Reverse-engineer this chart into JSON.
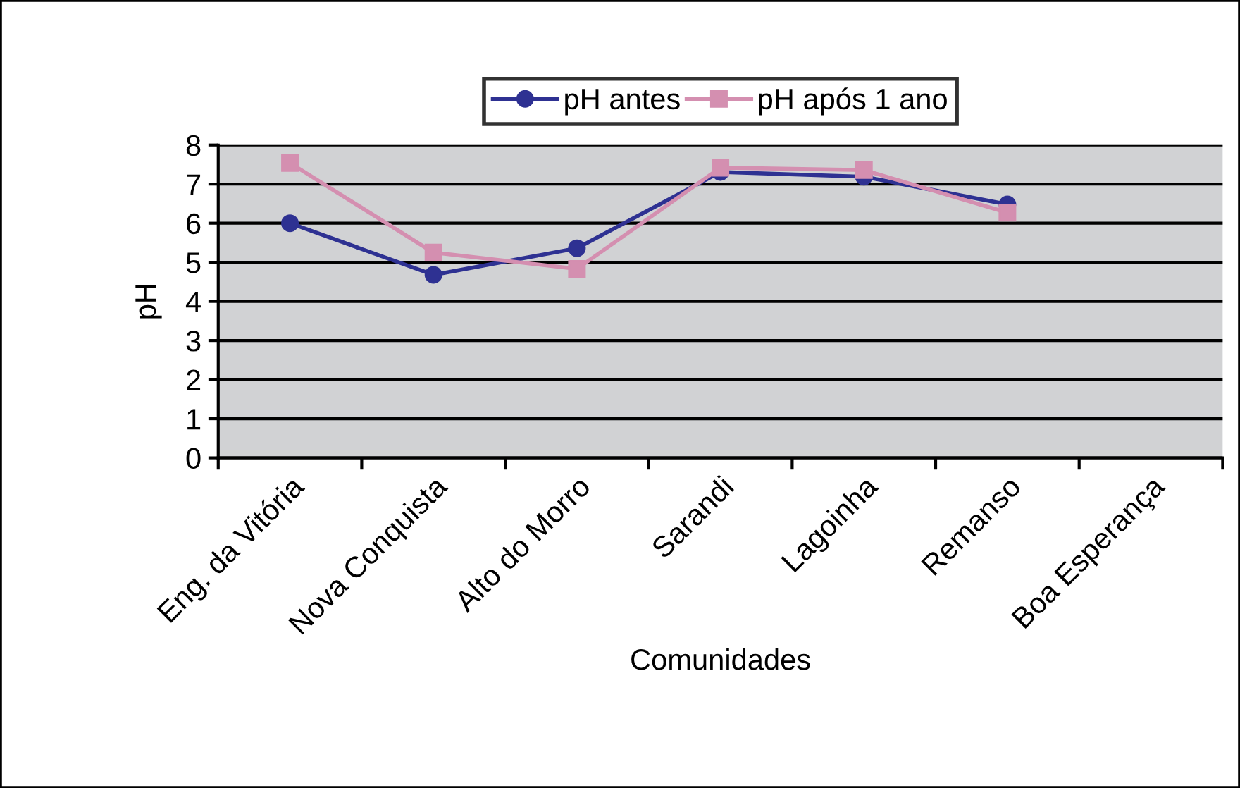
{
  "chart_data": {
    "type": "line",
    "xlabel": "Comunidades",
    "ylabel": "pH",
    "categories": [
      "Eng. da Vitória",
      "Nova Conquista",
      "Alto do Morro",
      "Sarandi",
      "Lagoinha",
      "Remanso",
      "Boa Esperança"
    ],
    "series": [
      {
        "name": "pH antes",
        "color": "#2e3192",
        "marker": "circle",
        "values": [
          6.0,
          4.68,
          5.36,
          7.31,
          7.19,
          6.48,
          null
        ]
      },
      {
        "name": "pH após 1 ano",
        "color": "#d48fb0",
        "marker": "square",
        "values": [
          7.54,
          5.25,
          4.83,
          7.42,
          7.36,
          6.27,
          null
        ]
      }
    ],
    "ylim": [
      0,
      8
    ],
    "yticks": [
      0,
      1,
      2,
      3,
      4,
      5,
      6,
      7,
      8
    ],
    "grid": "y",
    "legend": "top",
    "line_style": "solid"
  }
}
